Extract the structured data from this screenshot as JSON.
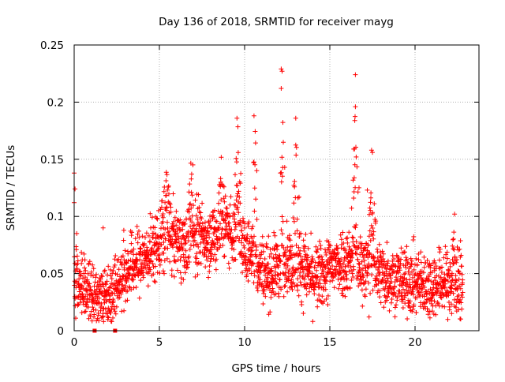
{
  "chart_data": {
    "type": "scatter",
    "title": "Day 136 of 2018, SRMTID for receiver mayg",
    "xlabel": "GPS time / hours",
    "ylabel": "SRMTID / TECUs",
    "xlim": [
      0,
      23.75
    ],
    "ylim": [
      0,
      0.25
    ],
    "x_ticks": [
      0,
      5,
      10,
      15,
      20
    ],
    "x_tick_labels": [
      "0",
      "5",
      "10",
      "15",
      "20"
    ],
    "y_ticks": [
      0,
      0.05,
      0.1,
      0.15,
      0.2,
      0.25
    ],
    "y_tick_labels": [
      "0",
      "0.05",
      "0.1",
      "0.15",
      "0.2",
      "0.25"
    ],
    "grid": true,
    "marker": "+",
    "color": "#ff0000",
    "baseline": [
      [
        0.0,
        0.045
      ],
      [
        0.5,
        0.038
      ],
      [
        1.0,
        0.036
      ],
      [
        1.5,
        0.03
      ],
      [
        2.0,
        0.032
      ],
      [
        2.5,
        0.04
      ],
      [
        3.0,
        0.052
      ],
      [
        3.5,
        0.058
      ],
      [
        4.0,
        0.062
      ],
      [
        4.5,
        0.068
      ],
      [
        5.0,
        0.078
      ],
      [
        5.5,
        0.082
      ],
      [
        6.0,
        0.078
      ],
      [
        6.5,
        0.076
      ],
      [
        7.0,
        0.08
      ],
      [
        7.5,
        0.082
      ],
      [
        8.0,
        0.082
      ],
      [
        8.5,
        0.085
      ],
      [
        9.0,
        0.09
      ],
      [
        9.5,
        0.085
      ],
      [
        10.0,
        0.072
      ],
      [
        10.5,
        0.065
      ],
      [
        11.0,
        0.055
      ],
      [
        11.5,
        0.05
      ],
      [
        12.0,
        0.058
      ],
      [
        12.5,
        0.062
      ],
      [
        13.0,
        0.06
      ],
      [
        13.5,
        0.055
      ],
      [
        14.0,
        0.045
      ],
      [
        14.5,
        0.048
      ],
      [
        15.0,
        0.055
      ],
      [
        15.5,
        0.06
      ],
      [
        16.0,
        0.062
      ],
      [
        16.5,
        0.06
      ],
      [
        17.0,
        0.058
      ],
      [
        17.5,
        0.055
      ],
      [
        18.0,
        0.05
      ],
      [
        18.5,
        0.048
      ],
      [
        19.0,
        0.046
      ],
      [
        19.5,
        0.044
      ],
      [
        20.0,
        0.042
      ],
      [
        20.5,
        0.04
      ],
      [
        21.0,
        0.04
      ],
      [
        21.5,
        0.042
      ],
      [
        22.0,
        0.042
      ],
      [
        22.5,
        0.04
      ],
      [
        22.8,
        0.04
      ]
    ],
    "spread": 0.014,
    "sample_count": 2400,
    "x_range": [
      0,
      22.8
    ],
    "bursts": [
      {
        "x": 5.4,
        "peak": 0.146,
        "width": 0.5
      },
      {
        "x": 6.9,
        "peak": 0.158,
        "width": 0.5
      },
      {
        "x": 8.6,
        "peak": 0.158,
        "width": 0.6
      },
      {
        "x": 9.6,
        "peak": 0.186,
        "width": 0.4
      },
      {
        "x": 10.6,
        "peak": 0.188,
        "width": 0.3
      },
      {
        "x": 12.2,
        "peak": 0.228,
        "width": 0.3
      },
      {
        "x": 13.0,
        "peak": 0.186,
        "width": 0.3
      },
      {
        "x": 16.5,
        "peak": 0.224,
        "width": 0.3
      },
      {
        "x": 17.5,
        "peak": 0.158,
        "width": 0.3
      },
      {
        "x": 22.3,
        "peak": 0.108,
        "width": 0.3
      }
    ],
    "outliers": [
      [
        0.0,
        0.138
      ],
      [
        0.05,
        0.124
      ],
      [
        1.7,
        0.09
      ],
      [
        12.15,
        0.229
      ],
      [
        12.2,
        0.227
      ],
      [
        12.15,
        0.212
      ],
      [
        16.5,
        0.224
      ],
      [
        16.5,
        0.196
      ],
      [
        16.45,
        0.159
      ],
      [
        17.45,
        0.158
      ],
      [
        17.5,
        0.156
      ],
      [
        10.55,
        0.188
      ],
      [
        9.55,
        0.186
      ],
      [
        13.0,
        0.186
      ],
      [
        17.2,
        0.123
      ],
      [
        16.4,
        0.116
      ],
      [
        15.9,
        0.03
      ],
      [
        17.3,
        0.012
      ],
      [
        19.3,
        0.02
      ],
      [
        22.15,
        0.015
      ],
      [
        0.0,
        0.112
      ],
      [
        0.15,
        0.085
      ]
    ],
    "zero_points": [
      1.2,
      2.4
    ]
  }
}
